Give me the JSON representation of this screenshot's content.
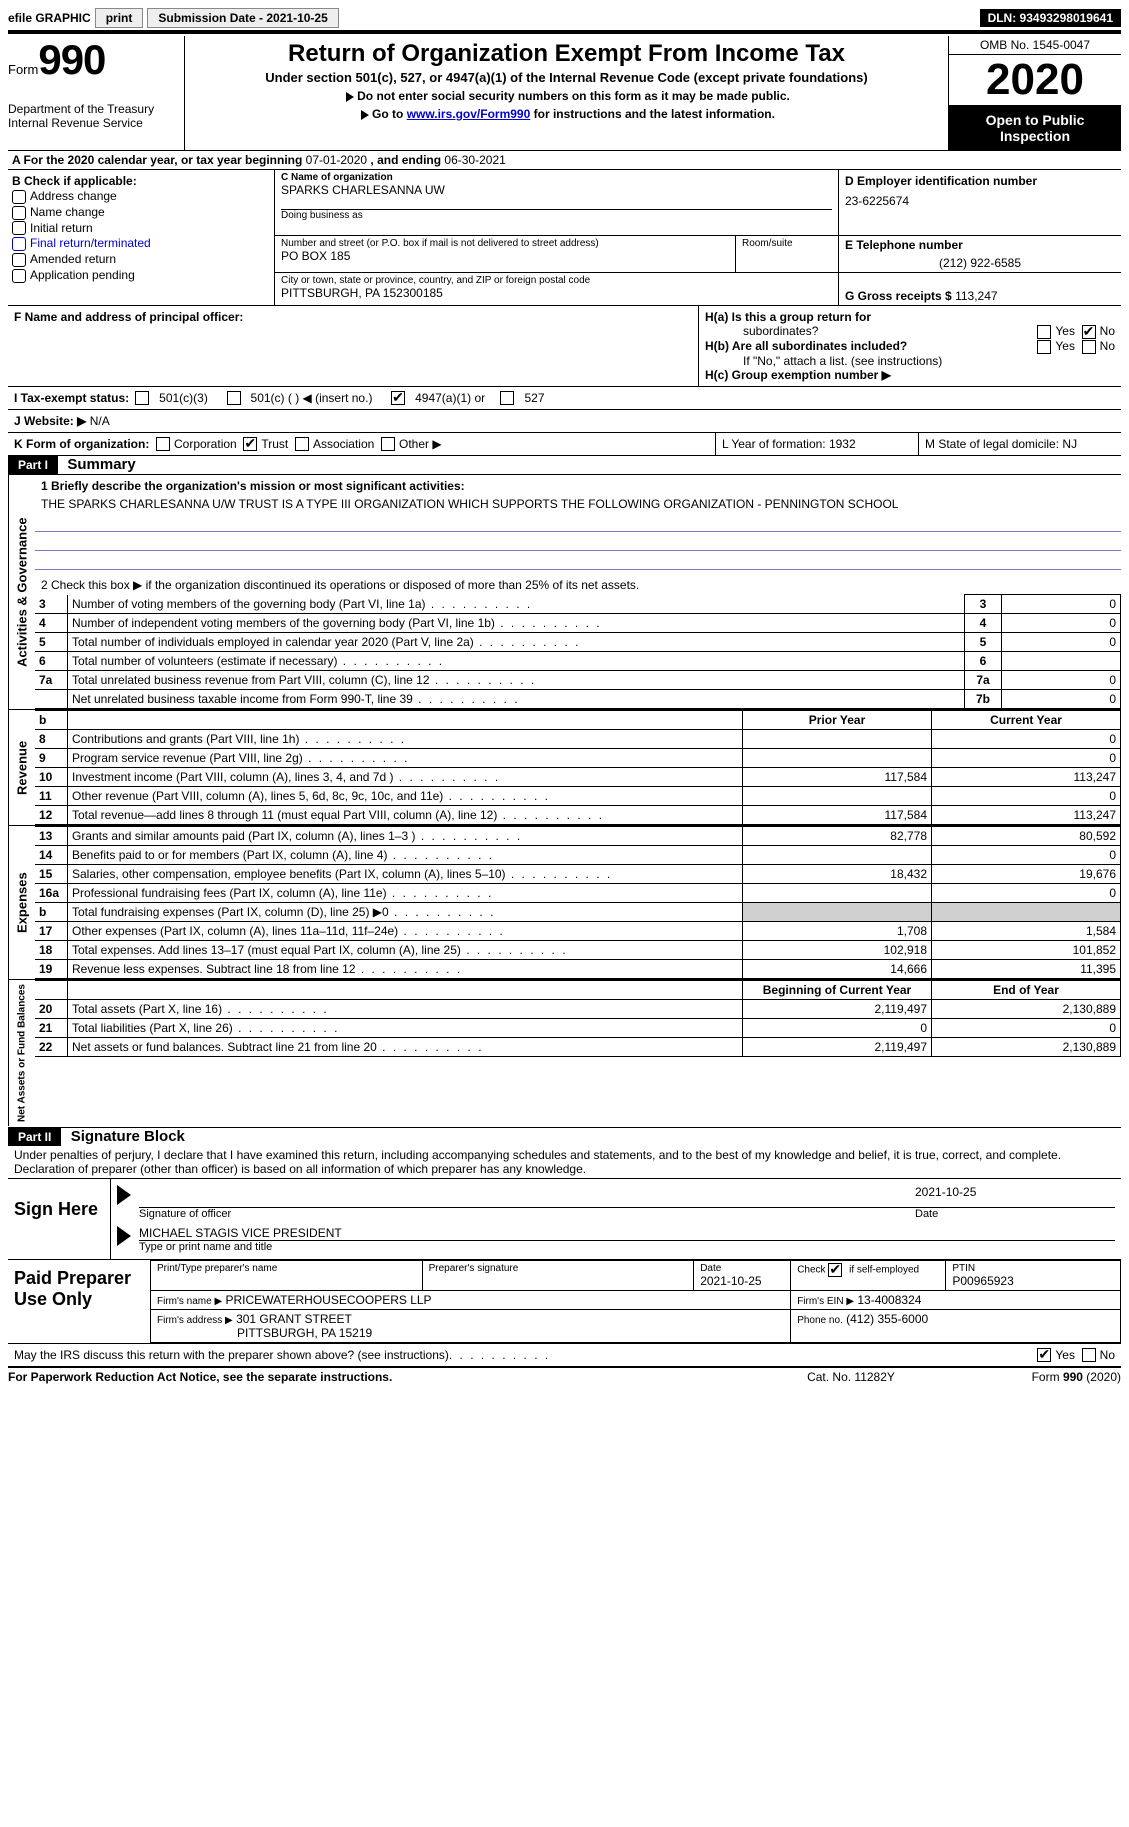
{
  "topbar": {
    "efile": "efile GRAPHIC",
    "print": "print",
    "submission": "Submission Date - 2021-10-25",
    "dln": "DLN: 93493298019641"
  },
  "header": {
    "form_word": "Form",
    "form_no": "990",
    "dept": "Department of the Treasury\nInternal Revenue Service",
    "title": "Return of Organization Exempt From Income Tax",
    "sub1": "Under section 501(c), 527, or 4947(a)(1) of the Internal Revenue Code (except private foundations)",
    "sub2a": "Do not enter social security numbers on this form as it may be made public.",
    "sub2b_pre": "Go to ",
    "sub2b_link": "www.irs.gov/Form990",
    "sub2b_post": " for instructions and the latest information.",
    "omb": "OMB No. 1545-0047",
    "year": "2020",
    "inspect": "Open to Public Inspection"
  },
  "lineA": {
    "pre": "A For the 2020 calendar year, or tax year beginning ",
    "begin": "07-01-2020",
    "mid": " , and ending ",
    "end": "06-30-2021"
  },
  "B": {
    "lead": "B Check if applicable:",
    "addr": "Address change",
    "name": "Name change",
    "init": "Initial return",
    "final": "Final return/terminated",
    "amend": "Amended return",
    "app": "Application pending"
  },
  "C": {
    "label": "C Name of organization",
    "org": "SPARKS CHARLESANNA UW",
    "dba_label": "Doing business as",
    "street_label": "Number and street (or P.O. box if mail is not delivered to street address)",
    "room_label": "Room/suite",
    "street": "PO BOX 185",
    "city_label": "City or town, state or province, country, and ZIP or foreign postal code",
    "city": "PITTSBURGH, PA  152300185"
  },
  "D": {
    "label": "D Employer identification number",
    "ein": "23-6225674"
  },
  "E": {
    "label": "E Telephone number",
    "tel": "(212) 922-6585"
  },
  "G": {
    "label": "G Gross receipts $",
    "val": "113,247"
  },
  "F": {
    "label": "F  Name and address of principal officer:"
  },
  "H": {
    "a": "H(a)  Is this a group return for",
    "a2": "subordinates?",
    "b": "H(b)  Are all subordinates included?",
    "note": "If \"No,\" attach a list. (see instructions)",
    "c": "H(c)  Group exemption number ▶",
    "yes": "Yes",
    "no": "No"
  },
  "I": {
    "lead": "I     Tax-exempt status:",
    "o1": "501(c)(3)",
    "o2": "501(c) (  ) ◀ (insert no.)",
    "o3": "4947(a)(1) or",
    "o4": "527"
  },
  "J": {
    "lead": "J    Website: ▶",
    "val": "  N/A"
  },
  "K": {
    "lead": "K Form of organization:",
    "corp": "Corporation",
    "trust": "Trust",
    "assoc": "Association",
    "other": "Other ▶"
  },
  "L": {
    "label": "L Year of formation: 1932"
  },
  "M": {
    "label": "M State of legal domicile: NJ"
  },
  "partI": {
    "bar": "Part I",
    "title": "Summary"
  },
  "summary": {
    "q1": "1  Briefly describe the organization's mission or most significant activities:",
    "mission": "THE SPARKS CHARLESANNA U/W TRUST IS A TYPE III ORGANIZATION WHICH SUPPORTS THE FOLLOWING ORGANIZATION - PENNINGTON SCHOOL",
    "q2": "2   Check this box ▶       if the organization discontinued its operations or disposed of more than 25% of its net assets.",
    "rows_gov": [
      {
        "n": "3",
        "t": "Number of voting members of the governing body (Part VI, line 1a)",
        "i": "3",
        "v": "0"
      },
      {
        "n": "4",
        "t": "Number of independent voting members of the governing body (Part VI, line 1b)",
        "i": "4",
        "v": "0"
      },
      {
        "n": "5",
        "t": "Total number of individuals employed in calendar year 2020 (Part V, line 2a)",
        "i": "5",
        "v": "0"
      },
      {
        "n": "6",
        "t": "Total number of volunteers (estimate if necessary)",
        "i": "6",
        "v": ""
      },
      {
        "n": "7a",
        "t": "Total unrelated business revenue from Part VIII, column (C), line 12",
        "i": "7a",
        "v": "0"
      },
      {
        "n": "",
        "t": "Net unrelated business taxable income from Form 990-T, line 39",
        "i": "7b",
        "v": "0"
      }
    ],
    "hdr_b": "b",
    "hdr_prior": "Prior Year",
    "hdr_curr": "Current Year",
    "rev": [
      {
        "n": "8",
        "t": "Contributions and grants (Part VIII, line 1h)",
        "p": "",
        "c": "0"
      },
      {
        "n": "9",
        "t": "Program service revenue (Part VIII, line 2g)",
        "p": "",
        "c": "0"
      },
      {
        "n": "10",
        "t": "Investment income (Part VIII, column (A), lines 3, 4, and 7d )",
        "p": "117,584",
        "c": "113,247"
      },
      {
        "n": "11",
        "t": "Other revenue (Part VIII, column (A), lines 5, 6d, 8c, 9c, 10c, and 11e)",
        "p": "",
        "c": "0"
      },
      {
        "n": "12",
        "t": "Total revenue—add lines 8 through 11 (must equal Part VIII, column (A), line 12)",
        "p": "117,584",
        "c": "113,247"
      }
    ],
    "exp": [
      {
        "n": "13",
        "t": "Grants and similar amounts paid (Part IX, column (A), lines 1–3 )",
        "p": "82,778",
        "c": "80,592"
      },
      {
        "n": "14",
        "t": "Benefits paid to or for members (Part IX, column (A), line 4)",
        "p": "",
        "c": "0"
      },
      {
        "n": "15",
        "t": "Salaries, other compensation, employee benefits (Part IX, column (A), lines 5–10)",
        "p": "18,432",
        "c": "19,676"
      },
      {
        "n": "16a",
        "t": "Professional fundraising fees (Part IX, column (A), line 11e)",
        "p": "",
        "c": "0"
      },
      {
        "n": "b",
        "t": "Total fundraising expenses (Part IX, column (D), line 25) ▶0",
        "p": "shade",
        "c": "shade"
      },
      {
        "n": "17",
        "t": "Other expenses (Part IX, column (A), lines 11a–11d, 11f–24e)",
        "p": "1,708",
        "c": "1,584"
      },
      {
        "n": "18",
        "t": "Total expenses. Add lines 13–17 (must equal Part IX, column (A), line 25)",
        "p": "102,918",
        "c": "101,852"
      },
      {
        "n": "19",
        "t": "Revenue less expenses. Subtract line 18 from line 12",
        "p": "14,666",
        "c": "11,395"
      }
    ],
    "hdr_begin": "Beginning of Current Year",
    "hdr_end": "End of Year",
    "net": [
      {
        "n": "20",
        "t": "Total assets (Part X, line 16)",
        "p": "2,119,497",
        "c": "2,130,889"
      },
      {
        "n": "21",
        "t": "Total liabilities (Part X, line 26)",
        "p": "0",
        "c": "0"
      },
      {
        "n": "22",
        "t": "Net assets or fund balances. Subtract line 21 from line 20",
        "p": "2,119,497",
        "c": "2,130,889"
      }
    ],
    "vtab_gov": "Activities & Governance",
    "vtab_rev": "Revenue",
    "vtab_exp": "Expenses",
    "vtab_net": "Net Assets or Fund Balances"
  },
  "partII": {
    "bar": "Part II",
    "title": "Signature Block"
  },
  "sig": {
    "penalty": "Under penalties of perjury, I declare that I have examined this return, including accompanying schedules and statements, and to the best of my knowledge and belief, it is true, correct, and complete. Declaration of preparer (other than officer) is based on all information of which preparer has any knowledge.",
    "sign_here": "Sign Here",
    "sig_officer": "Signature of officer",
    "date": "Date",
    "sig_date": "2021-10-25",
    "name": "MICHAEL STAGIS  VICE PRESIDENT",
    "name_label": "Type or print name and title"
  },
  "paid": {
    "title": "Paid Preparer Use Only",
    "h1": "Print/Type preparer's name",
    "h2": "Preparer's signature",
    "h3": "Date",
    "h3v": "2021-10-25",
    "h4": "Check         if self-employed",
    "h5": "PTIN",
    "ptin": "P00965923",
    "firm_l": "Firm's name    ▶",
    "firm": "PRICEWATERHOUSECOOPERS LLP",
    "ein_l": "Firm's EIN ▶",
    "ein": "13-4008324",
    "addr_l": "Firm's address ▶",
    "addr1": "301 GRANT STREET",
    "addr2": "PITTSBURGH, PA  15219",
    "phone_l": "Phone no.",
    "phone": "(412) 355-6000"
  },
  "bottom": {
    "q": "May the IRS discuss this return with the preparer shown above? (see instructions)",
    "yes": "Yes",
    "no": "No",
    "pra": "For Paperwork Reduction Act Notice, see the separate instructions.",
    "cat": "Cat. No. 11282Y",
    "form": "Form 990 (2020)"
  }
}
